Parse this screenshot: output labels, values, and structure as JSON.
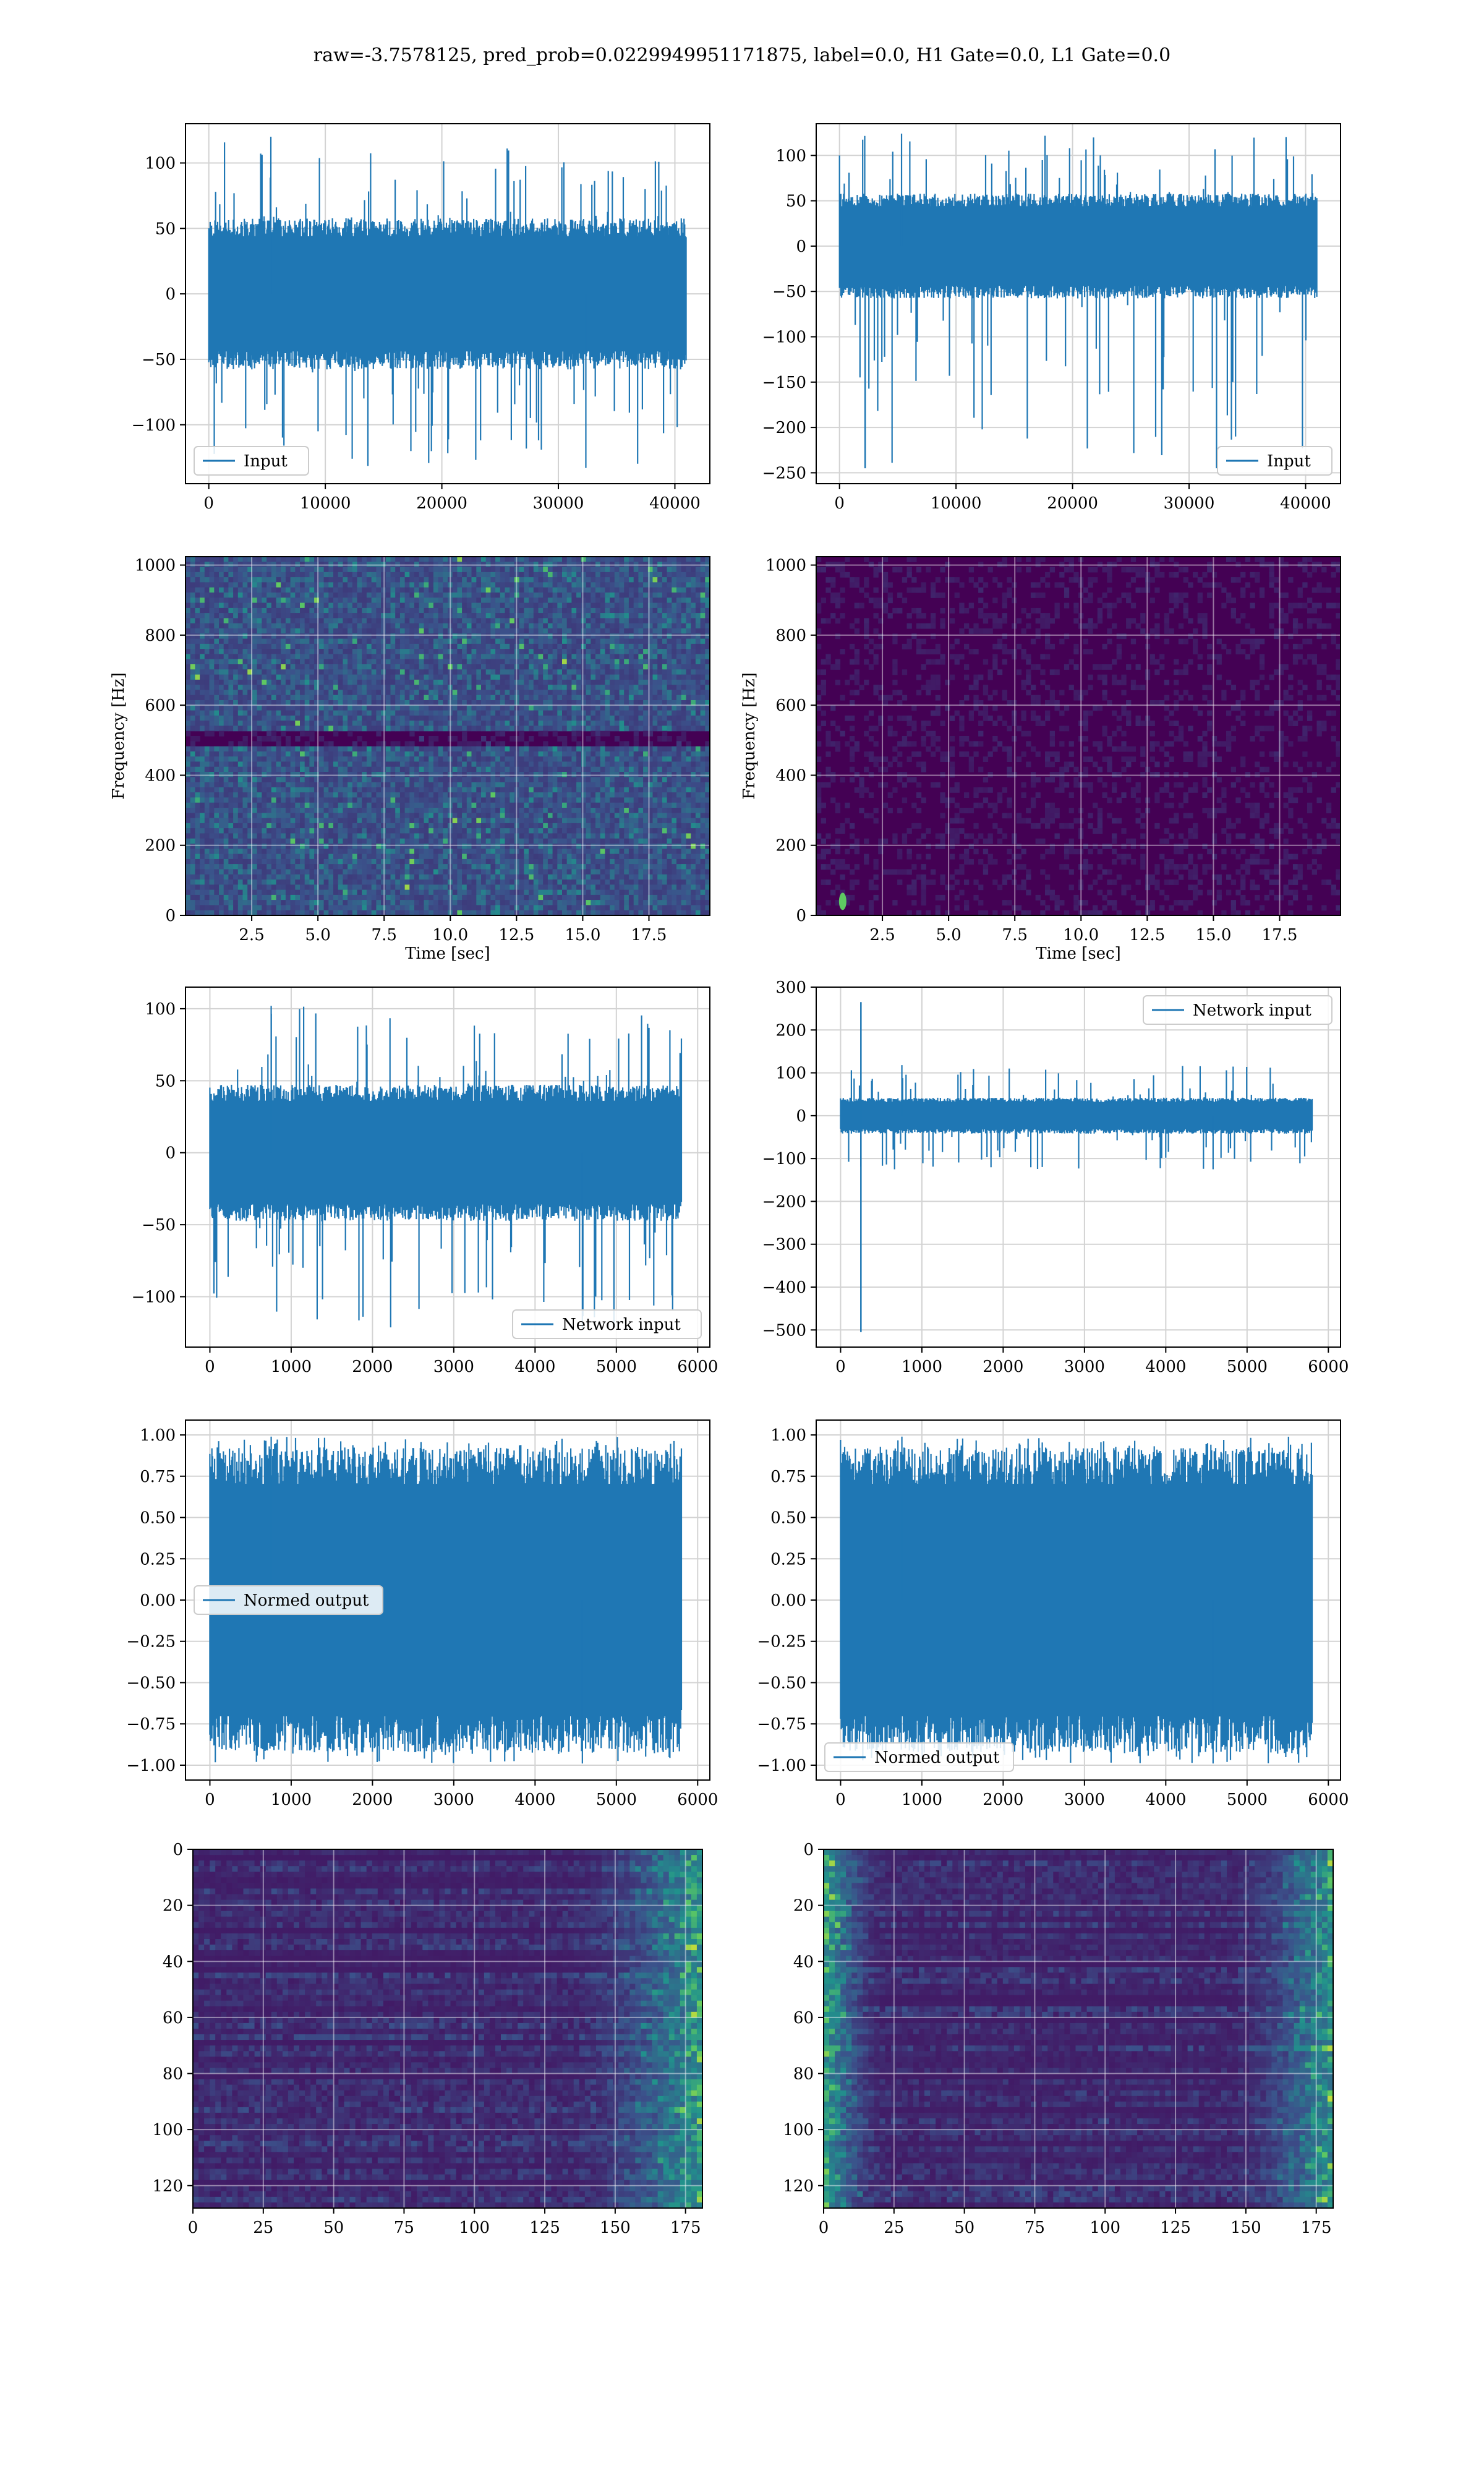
{
  "title": "raw=-3.7578125, pred_prob=0.0229949951171875, label=0.0, H1 Gate=0.0, L1 Gate=0.0",
  "colors": {
    "line": "#1f77b4",
    "grid": "#d3d3d3",
    "viridis_low": "#440154",
    "viridis_mid": "#21918c",
    "viridis_high": "#fde725"
  },
  "chart_data": [
    {
      "id": "input-h1",
      "type": "line",
      "row": 0,
      "col": 0,
      "xlim": [
        -2000,
        43000
      ],
      "ylim": [
        -145,
        130
      ],
      "xticks": [
        0,
        10000,
        20000,
        30000,
        40000
      ],
      "yticks": [
        -100,
        -50,
        0,
        50,
        100
      ],
      "legend": {
        "label": "Input",
        "position": "lower-left"
      },
      "grid": true,
      "signal": {
        "x_start": 0,
        "x_end": 40960,
        "bulk_low": -55,
        "bulk_high": 55,
        "peak_max": 120,
        "peak_min": -133
      }
    },
    {
      "id": "input-l1",
      "type": "line",
      "row": 0,
      "col": 1,
      "xlim": [
        -2000,
        43000
      ],
      "ylim": [
        -262,
        135
      ],
      "xticks": [
        0,
        10000,
        20000,
        30000,
        40000
      ],
      "yticks": [
        -250,
        -200,
        -150,
        -100,
        -50,
        0,
        50,
        100
      ],
      "legend": {
        "label": "Input",
        "position": "lower-right"
      },
      "grid": true,
      "signal": {
        "x_start": 0,
        "x_end": 40960,
        "bulk_low": -55,
        "bulk_high": 55,
        "peak_max": 124,
        "peak_min": -245,
        "spike_x": 2200
      }
    },
    {
      "id": "spectrogram-h1",
      "type": "heatmap",
      "row": 1,
      "col": 0,
      "xlim": [
        0,
        19.8
      ],
      "ylim": [
        0,
        1024
      ],
      "xticks": [
        2.5,
        5.0,
        7.5,
        10.0,
        12.5,
        15.0,
        17.5
      ],
      "yticks": [
        0,
        200,
        400,
        600,
        800,
        1000
      ],
      "xlabel": "Time [sec]",
      "ylabel": "Frequency [Hz]",
      "grid": true,
      "colormap": "viridis",
      "intensity": "noisy",
      "dark_band_hz": [
        480,
        520
      ]
    },
    {
      "id": "spectrogram-l1",
      "type": "heatmap",
      "row": 1,
      "col": 1,
      "xlim": [
        0,
        19.8
      ],
      "ylim": [
        0,
        1024
      ],
      "xticks": [
        2.5,
        5.0,
        7.5,
        10.0,
        12.5,
        15.0,
        17.5
      ],
      "yticks": [
        0,
        200,
        400,
        600,
        800,
        1000
      ],
      "xlabel": "Time [sec]",
      "ylabel": "Frequency [Hz]",
      "grid": true,
      "colormap": "viridis",
      "intensity": "dark",
      "hotspot": {
        "t": 1.0,
        "f": 40
      }
    },
    {
      "id": "network-input-h1",
      "type": "line",
      "row": 2,
      "col": 0,
      "xlim": [
        -300,
        6150
      ],
      "ylim": [
        -135,
        115
      ],
      "xticks": [
        0,
        1000,
        2000,
        3000,
        4000,
        5000,
        6000
      ],
      "yticks": [
        -100,
        -50,
        0,
        50,
        100
      ],
      "legend": {
        "label": "Network input",
        "position": "lower-right"
      },
      "grid": true,
      "signal": {
        "x_start": 0,
        "x_end": 5800,
        "bulk_low": -45,
        "bulk_high": 45,
        "peak_max": 102,
        "peak_min": -122
      }
    },
    {
      "id": "network-input-l1",
      "type": "line",
      "row": 2,
      "col": 1,
      "xlim": [
        -300,
        6150
      ],
      "ylim": [
        -540,
        300
      ],
      "xticks": [
        0,
        1000,
        2000,
        3000,
        4000,
        5000,
        6000
      ],
      "yticks": [
        -500,
        -400,
        -300,
        -200,
        -100,
        0,
        100,
        200,
        300
      ],
      "legend": {
        "label": "Network input",
        "position": "upper-right"
      },
      "grid": true,
      "signal": {
        "x_start": 0,
        "x_end": 5800,
        "bulk_low": -40,
        "bulk_high": 40,
        "peak_max": 118,
        "peak_min": -125,
        "spike_x": 250,
        "spike_top": 265,
        "spike_bottom": -505
      }
    },
    {
      "id": "normed-output-h1",
      "type": "line",
      "row": 3,
      "col": 0,
      "xlim": [
        -300,
        6150
      ],
      "ylim": [
        -1.09,
        1.09
      ],
      "xticks": [
        0,
        1000,
        2000,
        3000,
        4000,
        5000,
        6000
      ],
      "yticks": [
        -1.0,
        -0.75,
        -0.5,
        -0.25,
        0.0,
        0.25,
        0.5,
        0.75,
        1.0
      ],
      "legend": {
        "label": "Normed output",
        "position": "center-left"
      },
      "grid": true,
      "signal": {
        "x_start": 0,
        "x_end": 5800,
        "bulk_low": -0.88,
        "bulk_high": 0.88,
        "peak_max": 0.99,
        "peak_min": -0.99
      }
    },
    {
      "id": "normed-output-l1",
      "type": "line",
      "row": 3,
      "col": 1,
      "xlim": [
        -300,
        6150
      ],
      "ylim": [
        -1.09,
        1.09
      ],
      "xticks": [
        0,
        1000,
        2000,
        3000,
        4000,
        5000,
        6000
      ],
      "yticks": [
        -1.0,
        -0.75,
        -0.5,
        -0.25,
        0.0,
        0.25,
        0.5,
        0.75,
        1.0
      ],
      "legend": {
        "label": "Normed output",
        "position": "lower-left"
      },
      "grid": true,
      "signal": {
        "x_start": 0,
        "x_end": 5800,
        "bulk_low": -0.88,
        "bulk_high": 0.88,
        "peak_max": 0.99,
        "peak_min": -0.99
      }
    },
    {
      "id": "feature-map-h1",
      "type": "heatmap",
      "row": 4,
      "col": 0,
      "xlim": [
        0,
        181
      ],
      "ylim": [
        0,
        128
      ],
      "y_inverted": true,
      "xticks": [
        0,
        25,
        50,
        75,
        100,
        125,
        150,
        175
      ],
      "yticks": [
        0,
        20,
        40,
        60,
        80,
        100,
        120
      ],
      "grid": true,
      "colormap": "viridis",
      "bright_region": "right-edge"
    },
    {
      "id": "feature-map-l1",
      "type": "heatmap",
      "row": 4,
      "col": 1,
      "xlim": [
        0,
        181
      ],
      "ylim": [
        0,
        128
      ],
      "y_inverted": true,
      "xticks": [
        0,
        25,
        50,
        75,
        100,
        125,
        150,
        175
      ],
      "yticks": [
        0,
        20,
        40,
        60,
        80,
        100,
        120
      ],
      "grid": true,
      "colormap": "viridis",
      "bright_region": "both-edges"
    }
  ]
}
